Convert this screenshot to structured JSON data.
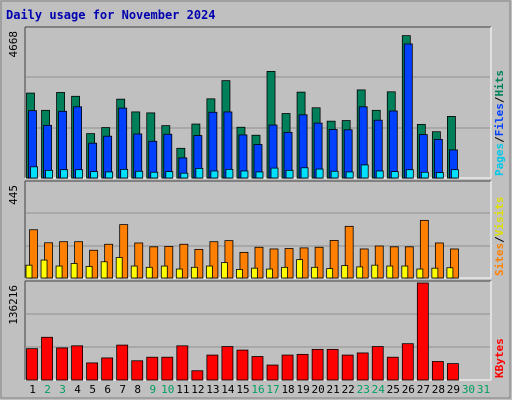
{
  "title": "Daily usage for November 2024",
  "colors": {
    "background": "#c0c0c0",
    "plot_bg": "#c0c0c0",
    "title": "#0000b0",
    "hits": "#00805a",
    "files": "#0040ff",
    "pages": "#00e0ff",
    "visits": "#ffff00",
    "sites": "#ff8000",
    "kbytes": "#ff0000",
    "weekend_day": "#00a060",
    "weekday": "#000000"
  },
  "chart_data": [
    {
      "type": "bar",
      "name": "hits-files-pages",
      "ymax_label": "4668",
      "ymax": 4668,
      "categories": [
        "1",
        "2",
        "3",
        "4",
        "5",
        "6",
        "7",
        "8",
        "9",
        "10",
        "11",
        "12",
        "13",
        "14",
        "15",
        "16",
        "17",
        "18",
        "19",
        "20",
        "21",
        "22",
        "23",
        "24",
        "25",
        "26",
        "27",
        "28",
        "29",
        "30",
        "31"
      ],
      "series": [
        {
          "name": "Hits",
          "values": [
            2660,
            2120,
            2680,
            2560,
            1390,
            1580,
            2470,
            2070,
            2040,
            1640,
            930,
            1690,
            2480,
            3050,
            1590,
            1340,
            3340,
            2020,
            2690,
            2200,
            1780,
            1800,
            2760,
            2120,
            2700,
            4460,
            1680,
            1450,
            1930,
            null,
            null
          ]
        },
        {
          "name": "Files",
          "values": [
            2110,
            1650,
            2090,
            2230,
            1090,
            1310,
            2190,
            1380,
            1150,
            1370,
            630,
            1330,
            2060,
            2070,
            1350,
            1050,
            1660,
            1430,
            1980,
            1720,
            1520,
            1510,
            2230,
            1810,
            2100,
            4200,
            1360,
            1210,
            880,
            null,
            null
          ]
        },
        {
          "name": "Pages",
          "values": [
            350,
            240,
            260,
            260,
            200,
            190,
            270,
            210,
            180,
            200,
            150,
            300,
            220,
            270,
            220,
            190,
            310,
            240,
            320,
            280,
            210,
            190,
            410,
            220,
            200,
            260,
            180,
            170,
            260,
            null,
            null
          ]
        }
      ]
    },
    {
      "type": "bar",
      "name": "visits-sites",
      "ymax_label": "445",
      "ymax": 445,
      "categories": [
        "1",
        "2",
        "3",
        "4",
        "5",
        "6",
        "7",
        "8",
        "9",
        "10",
        "11",
        "12",
        "13",
        "14",
        "15",
        "16",
        "17",
        "18",
        "19",
        "20",
        "21",
        "22",
        "23",
        "24",
        "25",
        "26",
        "27",
        "28",
        "29",
        "30",
        "31"
      ],
      "series": [
        {
          "name": "Sites",
          "values": [
            226,
            165,
            170,
            170,
            130,
            158,
            250,
            164,
            146,
            148,
            158,
            134,
            170,
            175,
            120,
            144,
            136,
            138,
            141,
            144,
            176,
            242,
            136,
            150,
            146,
            146,
            270,
            164,
            136,
            null,
            null
          ]
        },
        {
          "name": "Visits",
          "values": [
            60,
            84,
            56,
            68,
            54,
            76,
            96,
            56,
            50,
            56,
            42,
            50,
            56,
            72,
            40,
            46,
            42,
            50,
            86,
            50,
            44,
            58,
            52,
            60,
            56,
            56,
            42,
            46,
            48,
            null,
            null
          ]
        }
      ]
    },
    {
      "type": "bar",
      "name": "kbytes",
      "ymax_label": "136216",
      "ymax": 136216,
      "categories": [
        "1",
        "2",
        "3",
        "4",
        "5",
        "6",
        "7",
        "8",
        "9",
        "10",
        "11",
        "12",
        "13",
        "14",
        "15",
        "16",
        "17",
        "18",
        "19",
        "20",
        "21",
        "22",
        "23",
        "24",
        "25",
        "26",
        "27",
        "28",
        "29",
        "30",
        "31"
      ],
      "series": [
        {
          "name": "KBytes",
          "values": [
            44000,
            60000,
            45000,
            48000,
            24000,
            31000,
            49000,
            27000,
            32000,
            32000,
            48000,
            13000,
            35000,
            47000,
            42000,
            33000,
            21000,
            35000,
            36000,
            43000,
            43000,
            35000,
            38000,
            47000,
            32000,
            51000,
            136216,
            26000,
            23000,
            null,
            null
          ]
        }
      ]
    }
  ],
  "legend": {
    "top": [
      {
        "label": "Pages",
        "color": "#00c8e8"
      },
      {
        "label": "/",
        "color": "#000000"
      },
      {
        "label": "Files",
        "color": "#0040ff"
      },
      {
        "label": "/",
        "color": "#000000"
      },
      {
        "label": "Hits",
        "color": "#00805a"
      }
    ],
    "middle": [
      {
        "label": "Sites",
        "color": "#ff8000"
      },
      {
        "label": "/",
        "color": "#000000"
      },
      {
        "label": "Visits",
        "color": "#e0e000"
      }
    ],
    "bottom": [
      {
        "label": "KBytes",
        "color": "#ff0000"
      }
    ]
  },
  "days": [
    {
      "label": "1",
      "weekend": false
    },
    {
      "label": "2",
      "weekend": true
    },
    {
      "label": "3",
      "weekend": true
    },
    {
      "label": "4",
      "weekend": false
    },
    {
      "label": "5",
      "weekend": false
    },
    {
      "label": "6",
      "weekend": false
    },
    {
      "label": "7",
      "weekend": false
    },
    {
      "label": "8",
      "weekend": false
    },
    {
      "label": "9",
      "weekend": true
    },
    {
      "label": "10",
      "weekend": true
    },
    {
      "label": "11",
      "weekend": false
    },
    {
      "label": "12",
      "weekend": false
    },
    {
      "label": "13",
      "weekend": false
    },
    {
      "label": "14",
      "weekend": false
    },
    {
      "label": "15",
      "weekend": false
    },
    {
      "label": "16",
      "weekend": true
    },
    {
      "label": "17",
      "weekend": true
    },
    {
      "label": "18",
      "weekend": false
    },
    {
      "label": "19",
      "weekend": false
    },
    {
      "label": "20",
      "weekend": false
    },
    {
      "label": "21",
      "weekend": false
    },
    {
      "label": "22",
      "weekend": false
    },
    {
      "label": "23",
      "weekend": true
    },
    {
      "label": "24",
      "weekend": true
    },
    {
      "label": "25",
      "weekend": false
    },
    {
      "label": "26",
      "weekend": false
    },
    {
      "label": "27",
      "weekend": false
    },
    {
      "label": "28",
      "weekend": false
    },
    {
      "label": "29",
      "weekend": false
    },
    {
      "label": "30",
      "weekend": true
    },
    {
      "label": "31",
      "weekend": true
    }
  ]
}
